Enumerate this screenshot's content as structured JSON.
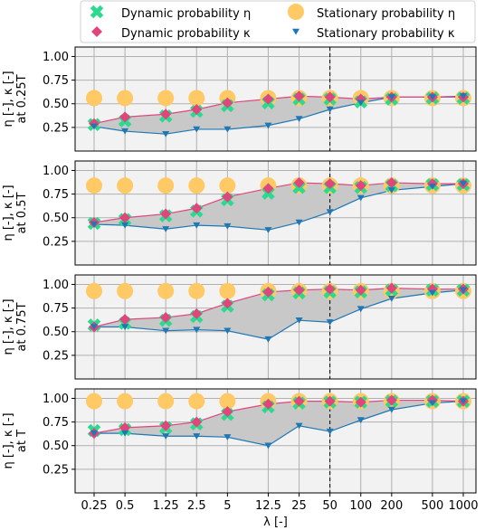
{
  "colors": {
    "dyn_eta": "#2bd98f",
    "dyn_kappa": "#e0457b",
    "stat_eta": "#ffc966",
    "stat_kappa": "#1f77b4",
    "band": "#c8c8c8",
    "panel_bg": "#f2f2f2",
    "grid": "#b0b0b0"
  },
  "chart_data": {
    "type": "scatter",
    "legend": {
      "placement": "top",
      "entries": [
        {
          "key": "dyn_eta",
          "label": "Dynamic probability η",
          "marker": "x-thick"
        },
        {
          "key": "stat_eta",
          "label": "Stationary probability η",
          "marker": "circle"
        },
        {
          "key": "dyn_kappa",
          "label": "Dynamic probability κ",
          "marker": "diamond"
        },
        {
          "key": "stat_kappa",
          "label": "Stationary probability κ",
          "marker": "triangle-down"
        }
      ]
    },
    "xlabel": "λ [-]",
    "x_ticks": [
      "0.25",
      "0.5",
      "1.25",
      "2.5",
      "5",
      "12.5",
      "25",
      "50",
      "100",
      "200",
      "500",
      "1000"
    ],
    "x": [
      0.25,
      0.5,
      1.25,
      2.5,
      5,
      12.5,
      25,
      50,
      100,
      200,
      500,
      1000
    ],
    "x_scale": "log",
    "ylim": [
      0.0,
      1.1
    ],
    "y_ticks": [
      "0.25",
      "0.50",
      "0.75",
      "1.00"
    ],
    "vline_x": 50,
    "grid": true,
    "panels": [
      {
        "ylabel_line1": "η [-], κ [-]",
        "ylabel_line2": "at 0.25T",
        "dyn_eta": [
          0.28,
          0.32,
          0.37,
          0.42,
          0.48,
          0.51,
          0.55,
          0.55,
          0.52,
          0.55,
          0.56,
          0.56
        ],
        "dyn_kappa": [
          0.29,
          0.36,
          0.39,
          0.44,
          0.51,
          0.55,
          0.58,
          0.57,
          0.55,
          0.57,
          0.57,
          0.57
        ],
        "stat_eta": [
          0.56,
          0.56,
          0.56,
          0.56,
          0.56,
          0.56,
          0.56,
          0.56,
          0.56,
          0.56,
          0.56,
          0.56
        ],
        "stat_kappa": [
          0.26,
          0.21,
          0.18,
          0.23,
          0.23,
          0.27,
          0.34,
          0.44,
          0.51,
          0.57,
          0.57,
          0.58
        ]
      },
      {
        "ylabel_line1": "η [-], κ [-]",
        "ylabel_line2": "at 0.5T",
        "dyn_eta": [
          0.44,
          0.48,
          0.52,
          0.57,
          0.69,
          0.76,
          0.82,
          0.82,
          0.82,
          0.84,
          0.85,
          0.85
        ],
        "dyn_kappa": [
          0.45,
          0.5,
          0.54,
          0.6,
          0.72,
          0.81,
          0.87,
          0.86,
          0.84,
          0.87,
          0.86,
          0.86
        ],
        "stat_eta": [
          0.84,
          0.84,
          0.84,
          0.84,
          0.84,
          0.84,
          0.84,
          0.84,
          0.84,
          0.84,
          0.84,
          0.84
        ],
        "stat_kappa": [
          0.43,
          0.42,
          0.38,
          0.42,
          0.41,
          0.37,
          0.45,
          0.56,
          0.71,
          0.79,
          0.83,
          0.86
        ]
      },
      {
        "ylabel_line1": "η [-], κ [-]",
        "ylabel_line2": "at 0.75T",
        "dyn_eta": [
          0.57,
          0.59,
          0.62,
          0.66,
          0.77,
          0.89,
          0.91,
          0.92,
          0.92,
          0.94,
          0.94,
          0.94
        ],
        "dyn_kappa": [
          0.55,
          0.63,
          0.65,
          0.69,
          0.8,
          0.92,
          0.94,
          0.95,
          0.94,
          0.96,
          0.95,
          0.95
        ],
        "stat_eta": [
          0.93,
          0.93,
          0.93,
          0.93,
          0.93,
          0.93,
          0.93,
          0.93,
          0.93,
          0.93,
          0.93,
          0.93
        ],
        "stat_kappa": [
          0.55,
          0.55,
          0.51,
          0.52,
          0.51,
          0.42,
          0.62,
          0.6,
          0.74,
          0.85,
          0.91,
          0.94
        ]
      },
      {
        "ylabel_line1": "η [-], κ [-]",
        "ylabel_line2": "at T",
        "dyn_eta": [
          0.66,
          0.67,
          0.69,
          0.73,
          0.83,
          0.91,
          0.95,
          0.96,
          0.96,
          0.97,
          0.97,
          0.97
        ],
        "dyn_kappa": [
          0.63,
          0.69,
          0.71,
          0.75,
          0.86,
          0.94,
          0.97,
          0.97,
          0.96,
          0.98,
          0.98,
          0.97
        ],
        "stat_eta": [
          0.97,
          0.97,
          0.97,
          0.97,
          0.97,
          0.97,
          0.97,
          0.97,
          0.97,
          0.97,
          0.97,
          0.97
        ],
        "stat_kappa": [
          0.63,
          0.63,
          0.6,
          0.6,
          0.59,
          0.5,
          0.71,
          0.65,
          0.77,
          0.88,
          0.95,
          0.97
        ]
      }
    ]
  }
}
